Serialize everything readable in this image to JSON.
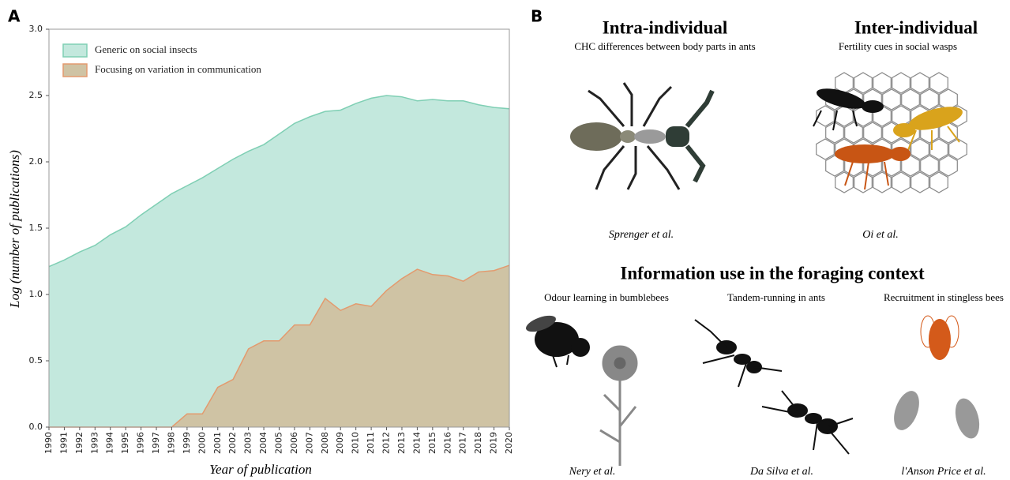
{
  "chart_data": {
    "type": "area",
    "y_label": "Log (number of publications)",
    "x_label": "Year of publication",
    "x": [
      1990,
      1991,
      1992,
      1993,
      1994,
      1995,
      1996,
      1997,
      1998,
      1999,
      2000,
      2001,
      2002,
      2003,
      2004,
      2005,
      2006,
      2007,
      2008,
      2009,
      2010,
      2011,
      2012,
      2013,
      2014,
      2015,
      2016,
      2017,
      2018,
      2019,
      2020
    ],
    "xlim": [
      1990,
      2020
    ],
    "ylim": [
      0,
      3
    ],
    "yticks": [
      {
        "value": 0,
        "label": "0.0"
      },
      0.5,
      {
        "value": 1,
        "label": "1.0"
      },
      1.5,
      {
        "value": 2,
        "label": "2.0"
      },
      2.5,
      {
        "value": 3,
        "label": "3.0"
      }
    ],
    "legend": "upper left",
    "series": [
      {
        "name": "Generic on social insects",
        "color": "#c3e8dd",
        "edge_color": "#7fcfb4",
        "values": [
          1.21,
          1.26,
          1.32,
          1.37,
          1.45,
          1.51,
          1.6,
          1.68,
          1.76,
          1.82,
          1.88,
          1.95,
          2.02,
          2.08,
          2.13,
          2.21,
          2.29,
          2.34,
          2.38,
          2.39,
          2.44,
          2.48,
          2.5,
          2.49,
          2.46,
          2.47,
          2.46,
          2.46,
          2.43,
          2.41,
          2.4
        ]
      },
      {
        "name": "Focusing on variation in communication",
        "color": "#cfc3a4",
        "edge_color": "#e39a6e",
        "values": [
          0,
          0,
          0,
          0,
          0,
          0,
          0,
          0,
          0,
          0.1,
          0.1,
          0.3,
          0.36,
          0.59,
          0.65,
          0.65,
          0.77,
          0.77,
          0.97,
          0.88,
          0.93,
          0.91,
          1.03,
          1.12,
          1.19,
          1.15,
          1.14,
          1.1,
          1.17,
          1.18,
          1.22
        ]
      }
    ]
  },
  "panel_labels": [
    "A",
    "B"
  ],
  "panel_b": {
    "intra": {
      "title": "Intra-individual",
      "subtitle": "CHC differences between body parts in ants",
      "citation": "Sprenger et al."
    },
    "inter": {
      "title": "Inter-individual",
      "subtitle": "Fertility cues in social wasps",
      "citation": "Oi et al."
    },
    "foraging": {
      "title": "Information use in the foraging context",
      "items": [
        {
          "subtitle": "Odour learning in bumblebees",
          "citation": "Nery et al."
        },
        {
          "subtitle": "Tandem-running in ants",
          "citation": "Da Silva et al."
        },
        {
          "subtitle": "Recruitment in stingless bees",
          "citation": "l'Anson Price et al."
        }
      ]
    }
  }
}
